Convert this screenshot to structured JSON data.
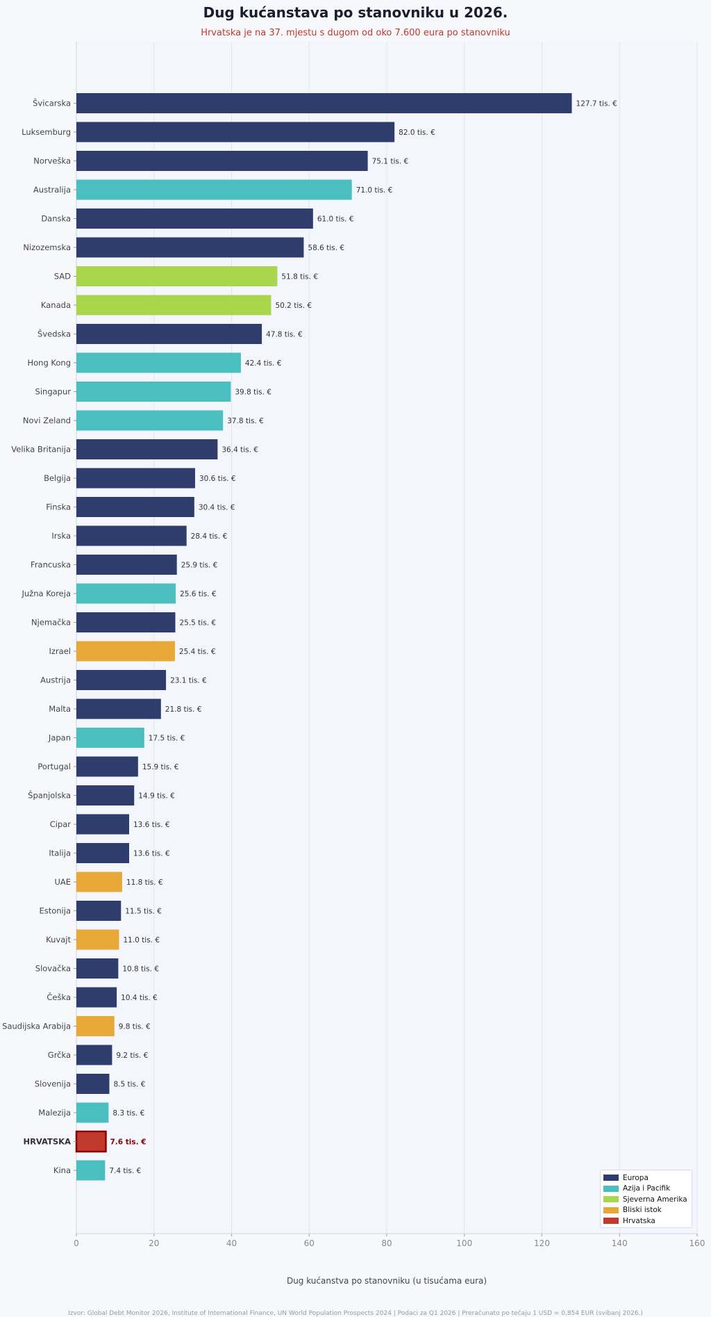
{
  "title": "Dug kućanstava po stanovniku u 2026.",
  "subtitle": "Hrvatska je na 37. mjestu s dugom od oko 7.600 eura po stanovniku",
  "source": "Izvor: Global Debt Monitor 2026, Institute of International Finance, UN World Population Prospects 2024 | Podaci za Q1 2026 | Preračunato po tečaju 1 USD = 0,854 EUR (svibanj 2026.)",
  "legend": [
    {
      "label": "Europa",
      "color": "#2e3d6b"
    },
    {
      "label": "Azija i Pacifik",
      "color": "#4bbfbf"
    },
    {
      "label": "Sjeverna Amerika",
      "color": "#a8d64c"
    },
    {
      "label": "Bliski istok",
      "color": "#e8a838"
    },
    {
      "label": "Hrvatska",
      "color": "#c0392b"
    }
  ],
  "chart_data": {
    "type": "bar",
    "orientation": "horizontal",
    "xlabel": "Dug kućanstva po stanovniku (u tisućama eura)",
    "xlim": [
      0,
      160
    ],
    "xticks": [
      0,
      20,
      40,
      60,
      80,
      100,
      120,
      140,
      160
    ],
    "grid": "vertical",
    "legend_position": "bottom-right",
    "value_suffix": " tis. €",
    "highlight": "HRVATSKA",
    "categories": [
      "Švicarska",
      "Luksemburg",
      "Norveška",
      "Australija",
      "Danska",
      "Nizozemska",
      "SAD",
      "Kanada",
      "Švedska",
      "Hong Kong",
      "Singapur",
      "Novi Zeland",
      "Velika Britanija",
      "Belgija",
      "Finska",
      "Irska",
      "Francuska",
      "Južna Koreja",
      "Njemačka",
      "Izrael",
      "Austrija",
      "Malta",
      "Japan",
      "Portugal",
      "Španjolska",
      "Cipar",
      "Italija",
      "UAE",
      "Estonija",
      "Kuvajt",
      "Slovačka",
      "Češka",
      "Saudijska Arabija",
      "Grčka",
      "Slovenija",
      "Malezija",
      "HRVATSKA",
      "Kina"
    ],
    "values": [
      127.7,
      82.0,
      75.1,
      71.0,
      61.0,
      58.6,
      51.8,
      50.2,
      47.8,
      42.4,
      39.8,
      37.8,
      36.4,
      30.6,
      30.4,
      28.4,
      25.9,
      25.6,
      25.5,
      25.4,
      23.1,
      21.8,
      17.5,
      15.9,
      14.9,
      13.6,
      13.6,
      11.8,
      11.5,
      11.0,
      10.8,
      10.4,
      9.8,
      9.2,
      8.5,
      8.3,
      7.6,
      7.4
    ],
    "value_labels": [
      "127.7 tis. €",
      "82.0 tis. €",
      "75.1 tis. €",
      "71.0 tis. €",
      "61.0 tis. €",
      "58.6 tis. €",
      "51.8 tis. €",
      "50.2 tis. €",
      "47.8 tis. €",
      "42.4 tis. €",
      "39.8 tis. €",
      "37.8 tis. €",
      "36.4 tis. €",
      "30.6 tis. €",
      "30.4 tis. €",
      "28.4 tis. €",
      "25.9 tis. €",
      "25.6 tis. €",
      "25.5 tis. €",
      "25.4 tis. €",
      "23.1 tis. €",
      "21.8 tis. €",
      "17.5 tis. €",
      "15.9 tis. €",
      "14.9 tis. €",
      "13.6 tis. €",
      "13.6 tis. €",
      "11.8 tis. €",
      "11.5 tis. €",
      "11.0 tis. €",
      "10.8 tis. €",
      "10.4 tis. €",
      "9.8 tis. €",
      "9.2 tis. €",
      "8.5 tis. €",
      "8.3 tis. €",
      "7.6 tis. €",
      "7.4 tis. €"
    ],
    "regions": [
      "Europa",
      "Europa",
      "Europa",
      "Azija i Pacifik",
      "Europa",
      "Europa",
      "Sjeverna Amerika",
      "Sjeverna Amerika",
      "Europa",
      "Azija i Pacifik",
      "Azija i Pacifik",
      "Azija i Pacifik",
      "Europa",
      "Europa",
      "Europa",
      "Europa",
      "Europa",
      "Azija i Pacifik",
      "Europa",
      "Bliski istok",
      "Europa",
      "Europa",
      "Azija i Pacifik",
      "Europa",
      "Europa",
      "Europa",
      "Europa",
      "Bliski istok",
      "Europa",
      "Bliski istok",
      "Europa",
      "Europa",
      "Bliski istok",
      "Europa",
      "Europa",
      "Azija i Pacifik",
      "Hrvatska",
      "Azija i Pacifik"
    ]
  }
}
